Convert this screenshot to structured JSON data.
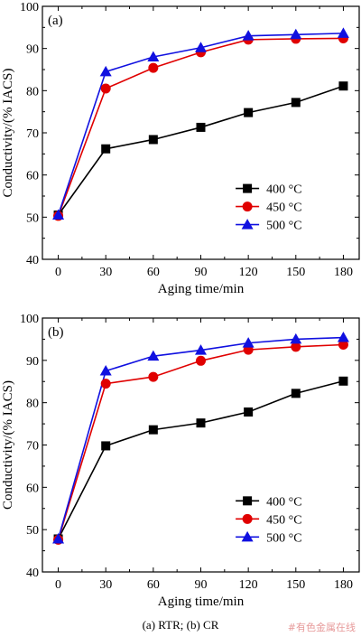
{
  "caption": "(a) RTR; (b) CR",
  "watermark": "#有色金属在线",
  "colors": {
    "400": "#000000",
    "450": "#e00000",
    "500": "#1010e0"
  },
  "chart_data": [
    {
      "type": "line",
      "panel_label": "(a)",
      "xlabel": "Aging time/min",
      "ylabel": "Conductivity/(% IACS)",
      "x": [
        0,
        30,
        60,
        90,
        120,
        150,
        180
      ],
      "xlim": [
        -10,
        190
      ],
      "ylim": [
        40,
        100
      ],
      "xticks": [
        "0",
        "30",
        "60",
        "90",
        "120",
        "150",
        "180"
      ],
      "yticks": [
        "40",
        "50",
        "60",
        "70",
        "80",
        "90",
        "100"
      ],
      "legend_position": "lower-right",
      "series": [
        {
          "name": "400 °C",
          "marker": "square",
          "values": [
            50.5,
            66.2,
            68.4,
            71.3,
            74.8,
            77.2,
            81.1
          ]
        },
        {
          "name": "450 °C",
          "marker": "circle",
          "values": [
            50.3,
            80.5,
            85.4,
            89.1,
            92.1,
            92.3,
            92.4
          ]
        },
        {
          "name": "500 °C",
          "marker": "triangle",
          "values": [
            50.5,
            84.5,
            88.0,
            90.2,
            93.0,
            93.3,
            93.6
          ]
        }
      ]
    },
    {
      "type": "line",
      "panel_label": "(b)",
      "xlabel": "Aging time/min",
      "ylabel": "Conductivity/(% IACS)",
      "x": [
        0,
        30,
        60,
        90,
        120,
        150,
        180
      ],
      "xlim": [
        -10,
        190
      ],
      "ylim": [
        40,
        100
      ],
      "xticks": [
        "0",
        "30",
        "60",
        "90",
        "120",
        "150",
        "180"
      ],
      "yticks": [
        "40",
        "50",
        "60",
        "70",
        "80",
        "90",
        "100"
      ],
      "legend_position": "lower-right",
      "series": [
        {
          "name": "400 °C",
          "marker": "square",
          "values": [
            47.8,
            69.8,
            73.6,
            75.2,
            77.8,
            82.2,
            85.1
          ]
        },
        {
          "name": "450 °C",
          "marker": "circle",
          "values": [
            47.6,
            84.5,
            86.1,
            89.9,
            92.5,
            93.2,
            93.7
          ]
        },
        {
          "name": "500 °C",
          "marker": "triangle",
          "values": [
            47.8,
            87.5,
            91.0,
            92.4,
            94.1,
            95.0,
            95.4
          ]
        }
      ]
    }
  ]
}
